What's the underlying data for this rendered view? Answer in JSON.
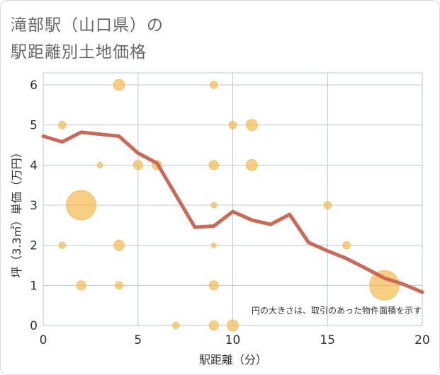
{
  "title_line1": "滝部駅（山口県）の",
  "title_line2": "駅距離別土地価格",
  "note": "円の大きさは、取引のあった物件面積を示す",
  "colors": {
    "bubble": "#f5b94d",
    "line": "#cd6854",
    "grid": "#b9c9d6",
    "plot_border": "#b9c9d6",
    "text": "#333333",
    "title": "#666666"
  },
  "chart_data": {
    "type": "scatter",
    "xlabel": "駅距離（分）",
    "ylabel": "坪（3.3㎡）単価（万円）",
    "xlim": [
      0,
      20
    ],
    "ylim": [
      0,
      6.3
    ],
    "xticks": [
      "0",
      "5",
      "10",
      "15",
      "20"
    ],
    "yticks": [
      "0",
      "1",
      "2",
      "3",
      "4",
      "5",
      "6"
    ],
    "grid": true,
    "bubbles": [
      {
        "x": 4,
        "y": 6,
        "size": 3
      },
      {
        "x": 9,
        "y": 6,
        "size": 2
      },
      {
        "x": 1,
        "y": 5,
        "size": 2
      },
      {
        "x": 10,
        "y": 5,
        "size": 2
      },
      {
        "x": 11,
        "y": 5,
        "size": 3
      },
      {
        "x": 3,
        "y": 4,
        "size": 1.5
      },
      {
        "x": 5,
        "y": 4,
        "size": 2.5
      },
      {
        "x": 6,
        "y": 4,
        "size": 2.5
      },
      {
        "x": 9,
        "y": 4,
        "size": 2.5
      },
      {
        "x": 11,
        "y": 4,
        "size": 3
      },
      {
        "x": 2,
        "y": 3,
        "size": 8
      },
      {
        "x": 9,
        "y": 3,
        "size": 1.5
      },
      {
        "x": 15,
        "y": 3,
        "size": 2
      },
      {
        "x": 1,
        "y": 2,
        "size": 1.8
      },
      {
        "x": 4,
        "y": 2,
        "size": 2.8
      },
      {
        "x": 9,
        "y": 2,
        "size": 1.3
      },
      {
        "x": 16,
        "y": 2,
        "size": 2
      },
      {
        "x": 2,
        "y": 1,
        "size": 2.5
      },
      {
        "x": 4,
        "y": 1,
        "size": 2
      },
      {
        "x": 9,
        "y": 1,
        "size": 2.5
      },
      {
        "x": 18,
        "y": 1,
        "size": 8
      },
      {
        "x": 7,
        "y": 0,
        "size": 1.8
      },
      {
        "x": 9,
        "y": 0,
        "size": 2.5
      },
      {
        "x": 10,
        "y": 0,
        "size": 3
      }
    ],
    "trend_line": {
      "x": [
        0,
        1,
        2,
        3,
        4,
        5,
        6,
        7,
        8,
        9,
        10,
        11,
        12,
        13,
        14,
        15,
        16,
        17,
        18,
        19,
        20
      ],
      "y": [
        4.72,
        4.58,
        4.82,
        4.77,
        4.72,
        4.3,
        4.05,
        3.25,
        2.45,
        2.48,
        2.84,
        2.63,
        2.52,
        2.77,
        2.07,
        1.86,
        1.67,
        1.43,
        1.18,
        1.03,
        0.83
      ]
    }
  }
}
